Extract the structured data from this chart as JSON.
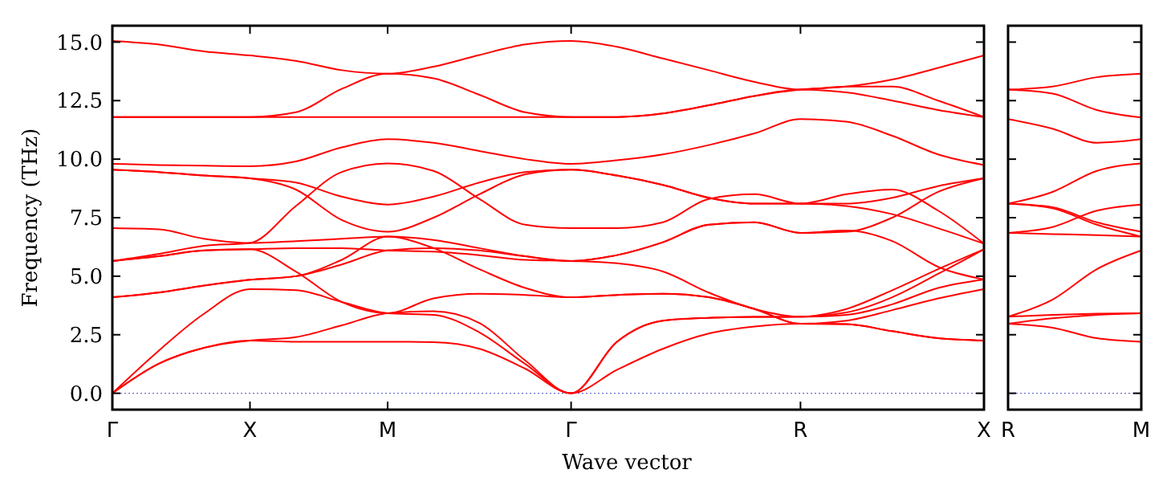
{
  "chart_data": [
    {
      "type": "line",
      "xlabel": "Wave vector",
      "ylabel": "Frequency (THz)",
      "ylim": [
        -0.7,
        15.7
      ],
      "yticks": [
        {
          "value": 0,
          "label": "0.0"
        },
        {
          "value": 2.5,
          "label": "2.5"
        },
        {
          "value": 5,
          "label": "5.0"
        },
        {
          "value": 7.5,
          "label": "7.5"
        },
        {
          "value": 10,
          "label": "10.0"
        },
        {
          "value": 12.5,
          "label": "12.5"
        },
        {
          "value": 15,
          "label": "15.0"
        }
      ],
      "categories": [
        "Γ",
        null,
        null,
        "X",
        null,
        null,
        "M",
        null,
        null,
        null,
        "Γ",
        null,
        null,
        null,
        null,
        "R",
        null,
        null,
        null,
        "X"
      ],
      "ref_lines": [
        {
          "axis": "y",
          "value": 0,
          "color": "#6a6ad0",
          "line_style": "dotted"
        }
      ],
      "series": [
        {
          "color": "#ff0000",
          "values": [
            0,
            1.25,
            1.94,
            2.25,
            2.2,
            2.2,
            2.2,
            2.18,
            1.9,
            1.05,
            0,
            2.2,
            3.1,
            3.22,
            3.26,
            3.27,
            3.6,
            4.4,
            5.3,
            6.15
          ]
        },
        {
          "color": "#ff0000",
          "values": [
            0,
            1.25,
            1.94,
            2.25,
            2.4,
            2.9,
            3.42,
            3.5,
            3.0,
            1.4,
            0,
            2.2,
            3.1,
            3.22,
            3.26,
            3.27,
            3.35,
            3.8,
            4.5,
            4.86
          ]
        },
        {
          "color": "#ff0000",
          "values": [
            0,
            1.8,
            3.4,
            4.45,
            4.4,
            3.9,
            3.42,
            3.35,
            2.6,
            1.25,
            0,
            1.0,
            1.9,
            2.55,
            2.85,
            2.97,
            2.95,
            2.65,
            2.35,
            2.25
          ]
        },
        {
          "color": "#ff0000",
          "values": [
            4.1,
            4.3,
            4.6,
            4.85,
            5.0,
            5.5,
            6.1,
            6.2,
            6.1,
            5.85,
            5.65,
            5.9,
            6.45,
            7.2,
            7.3,
            6.85,
            6.9,
            7.5,
            8.6,
            9.18
          ]
        },
        {
          "color": "#ff0000",
          "values": [
            4.1,
            4.3,
            4.6,
            4.85,
            5.0,
            5.7,
            6.69,
            6.55,
            6.2,
            5.85,
            5.65,
            5.9,
            6.45,
            7.2,
            7.3,
            6.85,
            6.95,
            6.5,
            5.4,
            4.86
          ]
        },
        {
          "color": "#ff0000",
          "values": [
            5.65,
            5.85,
            6.1,
            6.15,
            5.2,
            3.9,
            3.42,
            4.05,
            4.25,
            4.2,
            4.1,
            4.2,
            4.25,
            4.1,
            3.6,
            2.97,
            2.95,
            2.65,
            2.35,
            2.25
          ]
        },
        {
          "color": "#ff0000",
          "values": [
            5.65,
            5.85,
            6.1,
            6.15,
            6.2,
            6.2,
            6.1,
            6.05,
            5.9,
            5.7,
            5.65,
            5.55,
            5.2,
            4.3,
            3.6,
            3.27,
            3.45,
            4.1,
            5.1,
            6.15
          ]
        },
        {
          "color": "#ff0000",
          "values": [
            5.65,
            5.95,
            6.3,
            6.42,
            8.0,
            9.45,
            9.82,
            9.5,
            8.3,
            7.2,
            7.05,
            7.05,
            7.3,
            8.3,
            8.5,
            8.1,
            8.5,
            8.7,
            7.8,
            6.39
          ]
        },
        {
          "color": "#ff0000",
          "values": [
            7.05,
            7.0,
            6.6,
            6.42,
            6.5,
            6.6,
            6.69,
            6.2,
            5.3,
            4.5,
            4.1,
            4.2,
            4.25,
            4.1,
            3.6,
            2.97,
            3.1,
            3.55,
            4.05,
            4.45
          ]
        },
        {
          "color": "#ff0000",
          "values": [
            9.55,
            9.45,
            9.3,
            9.18,
            9.0,
            8.4,
            8.06,
            8.4,
            9.0,
            9.45,
            9.55,
            9.3,
            8.9,
            8.35,
            8.1,
            8.1,
            8.1,
            8.35,
            8.85,
            9.18
          ]
        },
        {
          "color": "#ff0000",
          "values": [
            9.55,
            9.45,
            9.3,
            9.18,
            8.7,
            7.4,
            6.9,
            7.5,
            8.5,
            9.35,
            9.55,
            9.3,
            8.9,
            8.35,
            8.1,
            8.1,
            8.0,
            7.65,
            7.05,
            6.39
          ]
        },
        {
          "color": "#ff0000",
          "values": [
            9.8,
            9.75,
            9.72,
            9.7,
            9.9,
            10.5,
            10.85,
            10.7,
            10.35,
            10.0,
            9.8,
            9.95,
            10.2,
            10.6,
            11.1,
            11.71,
            11.6,
            11.0,
            10.2,
            9.75
          ]
        },
        {
          "color": "#ff0000",
          "values": [
            11.8,
            11.8,
            11.8,
            11.8,
            11.8,
            11.8,
            11.8,
            11.8,
            11.8,
            11.8,
            11.8,
            11.8,
            11.95,
            12.3,
            12.7,
            12.97,
            13.1,
            13.4,
            13.9,
            14.43
          ]
        },
        {
          "color": "#ff0000",
          "values": [
            11.8,
            11.8,
            11.8,
            11.8,
            12.0,
            13.0,
            13.65,
            13.45,
            12.75,
            12.0,
            11.8,
            11.8,
            11.95,
            12.3,
            12.7,
            12.97,
            12.85,
            12.5,
            12.1,
            11.8
          ]
        },
        {
          "color": "#ff0000",
          "values": [
            15.05,
            14.9,
            14.6,
            14.43,
            14.2,
            13.8,
            13.65,
            13.95,
            14.45,
            14.9,
            15.05,
            14.8,
            14.3,
            13.8,
            13.3,
            12.97,
            13.1,
            13.1,
            12.5,
            11.8
          ]
        }
      ]
    },
    {
      "type": "line",
      "tick_labels": "x",
      "ylim": [
        -0.7,
        15.7
      ],
      "yticks": [
        {
          "value": 0,
          "label": null
        },
        {
          "value": 2.5,
          "label": null
        },
        {
          "value": 5,
          "label": null
        },
        {
          "value": 7.5,
          "label": null
        },
        {
          "value": 10,
          "label": null
        },
        {
          "value": 12.5,
          "label": null
        },
        {
          "value": 15,
          "label": null
        }
      ],
      "categories": [
        "R",
        null,
        null,
        "M"
      ],
      "ref_lines": [
        {
          "axis": "y",
          "value": 0,
          "color": "#6a6ad0",
          "line_style": "dotted"
        }
      ],
      "series": [
        {
          "color": "#ff0000",
          "values": [
            12.97,
            13.1,
            13.5,
            13.65
          ]
        },
        {
          "color": "#ff0000",
          "values": [
            12.97,
            12.8,
            12.1,
            11.78
          ]
        },
        {
          "color": "#ff0000",
          "values": [
            11.71,
            11.3,
            10.7,
            10.85
          ]
        },
        {
          "color": "#ff0000",
          "values": [
            8.1,
            8.6,
            9.5,
            9.82
          ]
        },
        {
          "color": "#ff0000",
          "values": [
            8.1,
            7.9,
            7.2,
            6.69
          ]
        },
        {
          "color": "#ff0000",
          "values": [
            8.1,
            7.95,
            7.3,
            6.9
          ]
        },
        {
          "color": "#ff0000",
          "values": [
            6.85,
            7.1,
            7.8,
            8.06
          ]
        },
        {
          "color": "#ff0000",
          "values": [
            6.85,
            6.8,
            6.75,
            6.69
          ]
        },
        {
          "color": "#ff0000",
          "values": [
            3.27,
            4.0,
            5.3,
            6.1
          ]
        },
        {
          "color": "#ff0000",
          "values": [
            3.27,
            3.35,
            3.4,
            3.42
          ]
        },
        {
          "color": "#ff0000",
          "values": [
            2.97,
            3.2,
            3.35,
            3.42
          ]
        },
        {
          "color": "#ff0000",
          "values": [
            2.97,
            2.8,
            2.35,
            2.2
          ]
        }
      ]
    }
  ]
}
